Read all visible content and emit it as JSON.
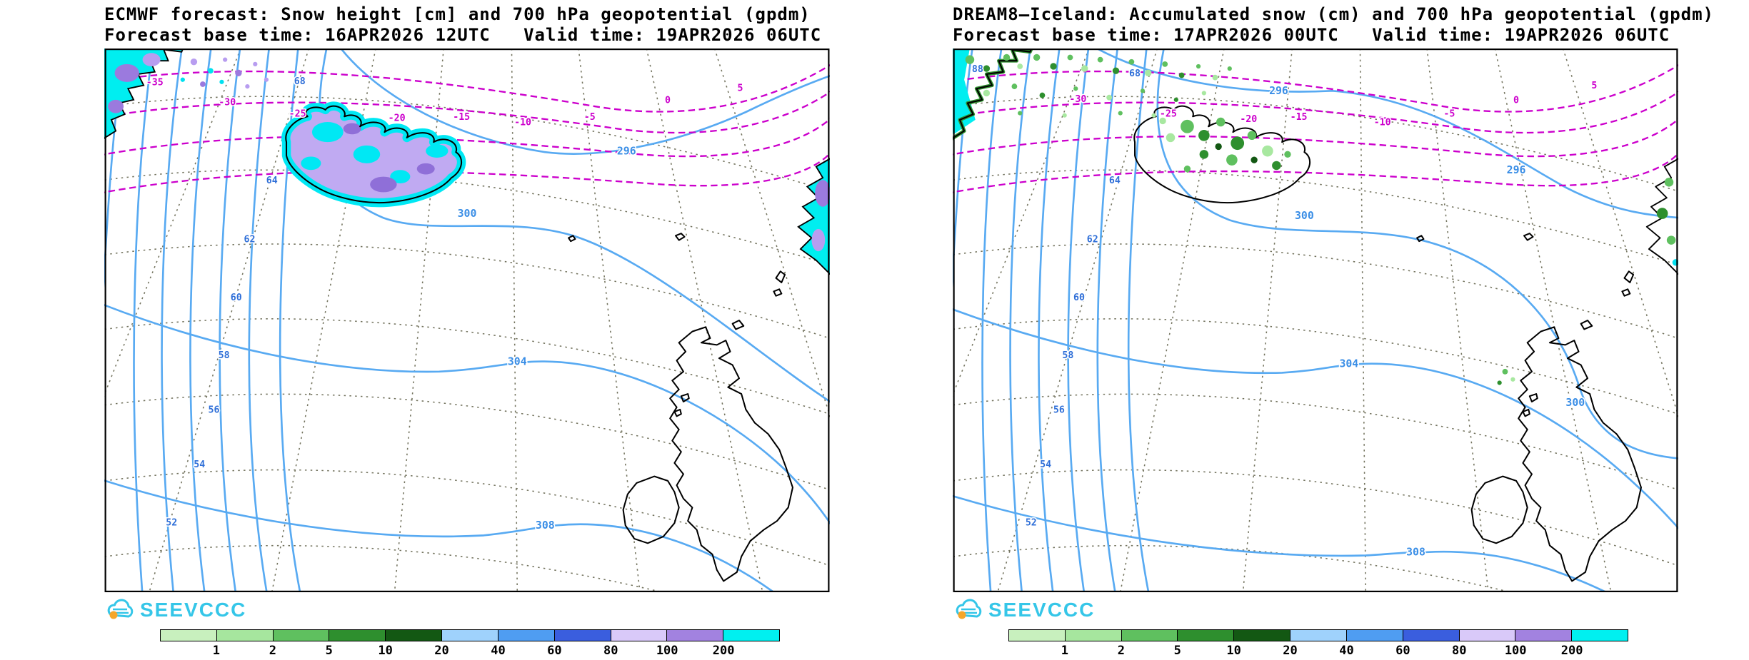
{
  "panels": [
    {
      "title_line1": "ECMWF forecast: Snow height [cm] and 700 hPa geopotential (gpdm)",
      "title_line2": "Forecast base time: 16APR2026 12UTC   Valid time: 19APR2026 06UTC",
      "logo_text": "SEEVCCC",
      "geopotential_labels": [
        "296",
        "300",
        "304",
        "308"
      ],
      "temperature_labels": [
        "-35",
        "-30",
        "-25",
        "-20",
        "-15",
        "-10",
        "-5",
        "0",
        "5"
      ],
      "latitude_labels": [
        "68",
        "64",
        "62",
        "60",
        "58",
        "56",
        "54",
        "52"
      ]
    },
    {
      "title_line1": "DREAM8–Iceland: Accumulated snow (cm) and 700 hPa geopotential (gpdm)",
      "title_line2": "Forecast base time: 17APR2026 00UTC   Valid time: 19APR2026 06UTC",
      "logo_text": "SEEVCCC",
      "geopotential_labels": [
        "296",
        "300",
        "304",
        "308",
        "300",
        "296"
      ],
      "temperature_labels": [
        "-30",
        "-25",
        "-20",
        "-15",
        "-10",
        "-5",
        "0",
        "5"
      ],
      "latitude_labels": [
        "88",
        "68",
        "64",
        "62",
        "60",
        "58",
        "56",
        "54",
        "52"
      ]
    }
  ],
  "legend": {
    "tick_labels": [
      "1",
      "2",
      "5",
      "10",
      "20",
      "40",
      "60",
      "80",
      "100",
      "200"
    ],
    "colors": [
      "#c8f0be",
      "#a6e69e",
      "#5fc05f",
      "#2e8f2e",
      "#135813",
      "#9fd2fc",
      "#4f9df2",
      "#3a5ede",
      "#d9c9f9",
      "#a282e0",
      "#00f0f0"
    ]
  },
  "colors": {
    "geopotential_contour": "#58aaf2",
    "temperature_contour": "#cc00cc",
    "graticule": "#73735e",
    "coastline": "#000000",
    "snow_heavy": "#00eef0",
    "snow_purple": "#9b7ade",
    "logo": "#35c6e8",
    "logo_sun": "#f5a62a"
  }
}
